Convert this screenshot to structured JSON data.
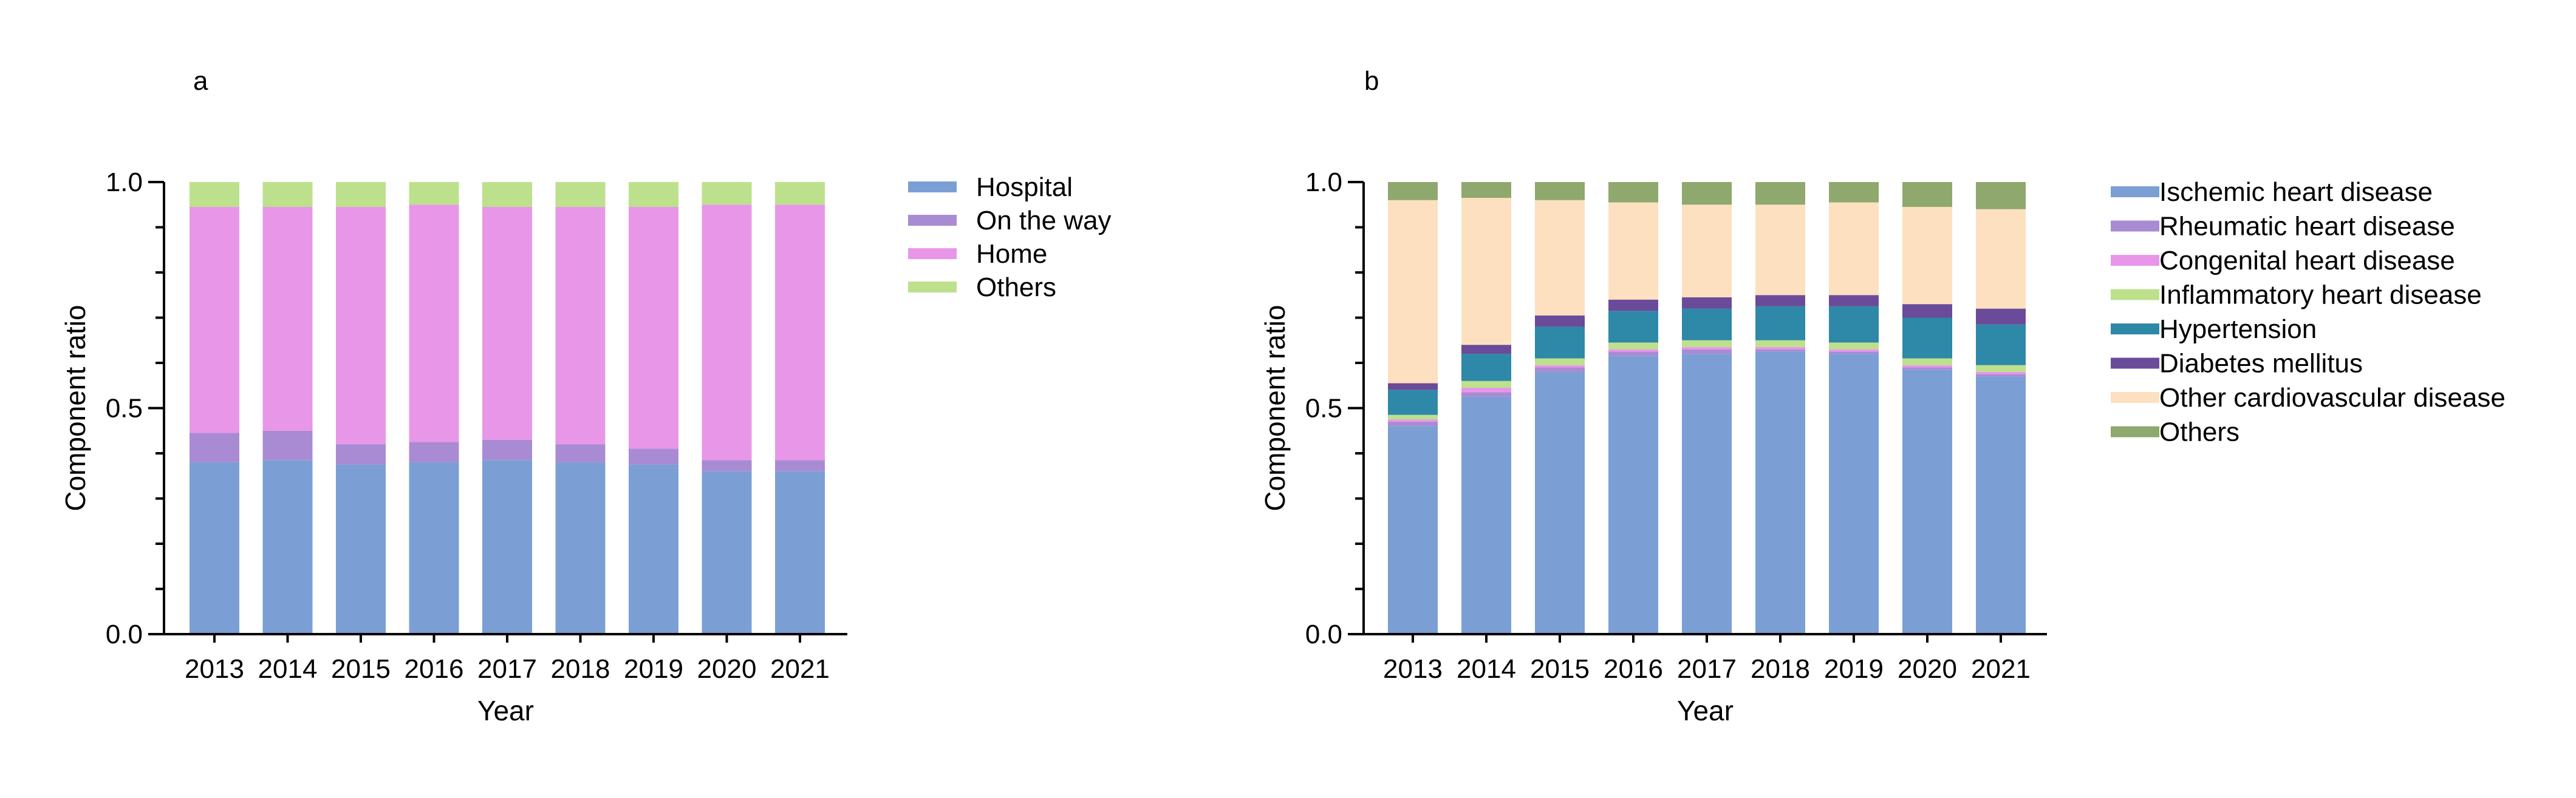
{
  "chart_data": [
    {
      "panel": "a",
      "type": "bar",
      "stacked": true,
      "categories": [
        "2013",
        "2014",
        "2015",
        "2016",
        "2017",
        "2018",
        "2019",
        "2020",
        "2021"
      ],
      "ylabel": "Component ratio",
      "xlabel": "Year",
      "ylim": [
        0,
        1
      ],
      "yticks": [
        "0.0",
        "0.5",
        "1.0"
      ],
      "legend_position": "right",
      "series": [
        {
          "name": "Hospital",
          "color": "#7b9fd4",
          "values": [
            0.38,
            0.385,
            0.375,
            0.38,
            0.385,
            0.38,
            0.375,
            0.36,
            0.36
          ]
        },
        {
          "name": "On the way",
          "color": "#a98bd3",
          "values": [
            0.065,
            0.065,
            0.045,
            0.045,
            0.045,
            0.04,
            0.035,
            0.025,
            0.025
          ]
        },
        {
          "name": "Home",
          "color": "#e897e8",
          "values": [
            0.5,
            0.495,
            0.525,
            0.525,
            0.515,
            0.525,
            0.535,
            0.565,
            0.565
          ]
        },
        {
          "name": "Others",
          "color": "#bde08d",
          "values": [
            0.055,
            0.055,
            0.055,
            0.05,
            0.055,
            0.055,
            0.055,
            0.05,
            0.05
          ]
        }
      ]
    },
    {
      "panel": "b",
      "type": "bar",
      "stacked": true,
      "categories": [
        "2013",
        "2014",
        "2015",
        "2016",
        "2017",
        "2018",
        "2019",
        "2020",
        "2021"
      ],
      "ylabel": "Component ratio",
      "xlabel": "Year",
      "ylim": [
        0,
        1
      ],
      "yticks": [
        "0.0",
        "0.5",
        "1.0"
      ],
      "legend_position": "right",
      "series": [
        {
          "name": "Ischemic heart disease",
          "color": "#7b9fd4",
          "values": [
            0.46,
            0.525,
            0.58,
            0.615,
            0.62,
            0.625,
            0.62,
            0.585,
            0.57
          ]
        },
        {
          "name": "Rheumatic heart disease",
          "color": "#a98bd3",
          "values": [
            0.01,
            0.01,
            0.01,
            0.01,
            0.01,
            0.005,
            0.005,
            0.005,
            0.005
          ]
        },
        {
          "name": "Congenital heart disease",
          "color": "#e897e8",
          "values": [
            0.005,
            0.01,
            0.005,
            0.005,
            0.005,
            0.005,
            0.005,
            0.005,
            0.005
          ]
        },
        {
          "name": "Inflammatory heart disease",
          "color": "#bde08d",
          "values": [
            0.01,
            0.015,
            0.015,
            0.015,
            0.015,
            0.015,
            0.015,
            0.015,
            0.015
          ]
        },
        {
          "name": "Hypertension",
          "color": "#2e88a8",
          "values": [
            0.055,
            0.06,
            0.07,
            0.07,
            0.07,
            0.075,
            0.08,
            0.09,
            0.09
          ]
        },
        {
          "name": "Diabetes mellitus",
          "color": "#6a4b9a",
          "values": [
            0.015,
            0.02,
            0.025,
            0.025,
            0.025,
            0.025,
            0.025,
            0.03,
            0.035
          ]
        },
        {
          "name": "Other cardiovascular disease",
          "color": "#fde0bf",
          "values": [
            0.405,
            0.325,
            0.255,
            0.215,
            0.205,
            0.2,
            0.205,
            0.215,
            0.22
          ]
        },
        {
          "name": "Others",
          "color": "#8fa86e",
          "values": [
            0.04,
            0.035,
            0.04,
            0.045,
            0.05,
            0.05,
            0.045,
            0.055,
            0.06
          ]
        }
      ]
    }
  ]
}
